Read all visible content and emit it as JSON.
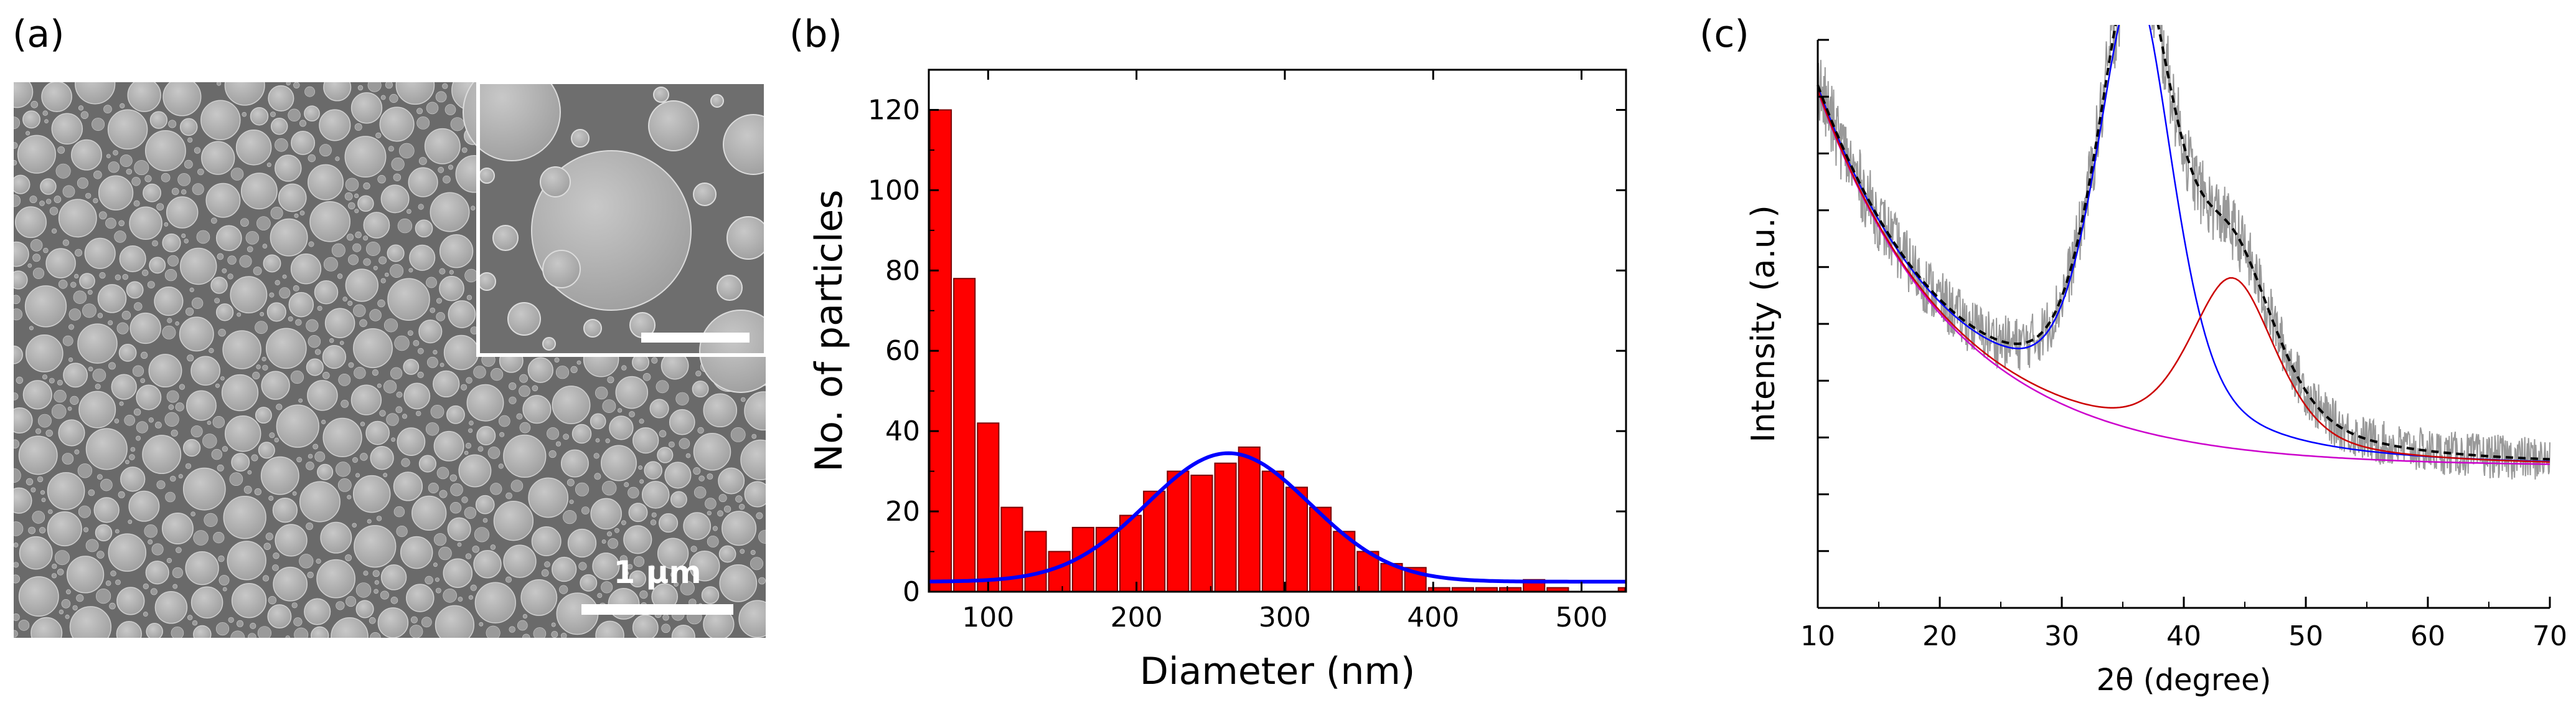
{
  "panels": {
    "a": {
      "label": "(a)"
    },
    "b": {
      "label": "(b)"
    },
    "c": {
      "label": "(c)"
    }
  },
  "sem": {
    "scale_bar_label": "1 µm",
    "colors": {
      "background": "#6c6c6c",
      "particle": "#b4b4b4",
      "particle_edge": "#d8d8d8"
    }
  },
  "chart_data": [
    {
      "type": "bar",
      "xlabel": "Diameter (nm)",
      "ylabel": "No. of particles",
      "xlim": [
        60,
        530
      ],
      "ylim": [
        0,
        130
      ],
      "xticks": [
        100,
        200,
        300,
        400,
        500
      ],
      "yticks": [
        0,
        20,
        40,
        60,
        80,
        100,
        120
      ],
      "bin_width": 16,
      "categories": [
        68,
        84,
        100,
        116,
        132,
        148,
        164,
        180,
        196,
        212,
        228,
        244,
        260,
        276,
        292,
        308,
        324,
        340,
        356,
        372,
        388,
        404,
        420,
        436,
        452,
        468,
        484,
        500,
        516,
        532
      ],
      "values": [
        120,
        78,
        42,
        21,
        15,
        10,
        16,
        16,
        19,
        25,
        30,
        29,
        32,
        36,
        30,
        26,
        21,
        15,
        10,
        7,
        6,
        1,
        1,
        1,
        1,
        3,
        1,
        0,
        0,
        1
      ],
      "fit": {
        "type": "gaussian",
        "center": 262,
        "sigma": 55,
        "amplitude": 32,
        "baseline": 2.5
      },
      "colors": {
        "bar": "#ff0000",
        "bar_edge": "#7a0000",
        "fit": "#0000ff"
      },
      "grid": false
    },
    {
      "type": "line",
      "xlabel": "2θ (degree)",
      "ylabel": "Intensity (a.u.)",
      "xlim": [
        10,
        70
      ],
      "xticks": [
        10,
        20,
        30,
        40,
        50,
        60,
        70
      ],
      "yticks_count": 11,
      "peaks": [
        {
          "name": "",
          "center": 36,
          "fwhm": 7.5,
          "height": 0.78,
          "color": "#0000ff"
        },
        {
          "name": "",
          "center": 44,
          "fwhm": 8.5,
          "height": 0.3,
          "color": "#cc0000"
        }
      ],
      "background": {
        "type": "decay",
        "base": 0.25,
        "amplitude": 0.66,
        "decay": 0.09,
        "color": "#cc00cc"
      },
      "envelope_color": "#000000",
      "raw_color": "#999999",
      "grid": false
    }
  ]
}
